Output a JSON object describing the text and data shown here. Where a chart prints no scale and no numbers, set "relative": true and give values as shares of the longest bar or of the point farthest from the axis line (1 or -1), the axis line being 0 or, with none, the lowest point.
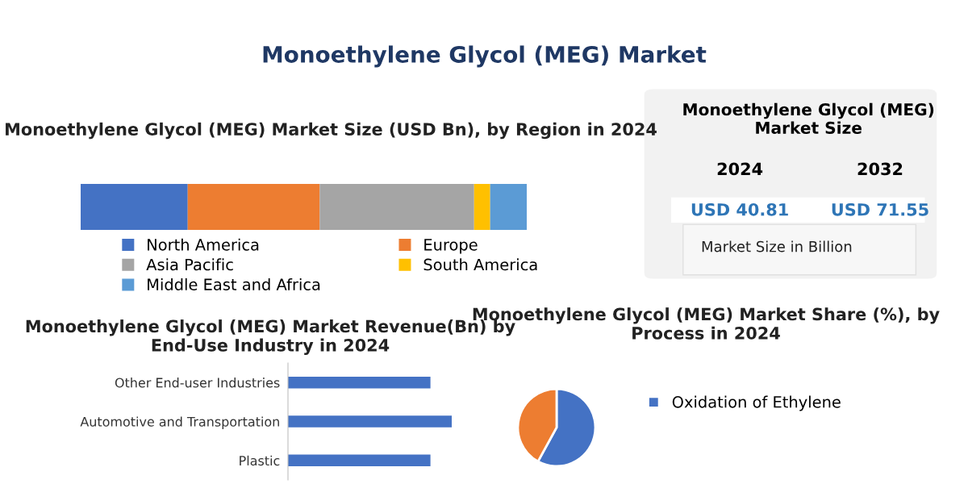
{
  "chart_data": [
    {
      "type": "other",
      "title": "Monoethylene Glycol (MEG) Market"
    },
    {
      "type": "bar",
      "title": "Monoethylene Glycol (MEG) Market Size (USD Bn), by Region in 2024",
      "orientation": "horizontal",
      "stacked": true,
      "relative": true,
      "tick_labels": false,
      "legend": "bottom",
      "categories": [
        null
      ],
      "series": [
        {
          "name": "North America",
          "color": "#4472c4",
          "values": [
            0.24
          ]
        },
        {
          "name": "Europe",
          "color": "#ed7d31",
          "values": [
            0.296
          ]
        },
        {
          "name": "Asia Pacific",
          "color": "#a5a5a5",
          "values": [
            0.346
          ]
        },
        {
          "name": "South America",
          "color": "#ffc000",
          "values": [
            0.036
          ]
        },
        {
          "name": "Middle East and Africa",
          "color": "#5b9bd5",
          "values": [
            0.082
          ]
        }
      ]
    },
    {
      "type": "other",
      "title": "Monoethylene Glycol (MEG) Market Size",
      "annotations": [
        "2024",
        "2032",
        "USD 40.81",
        "USD 71.55",
        "Market Size in Billion"
      ]
    },
    {
      "type": "bar",
      "title": "Monoethylene Glycol (MEG) Market Revenue(Bn) by End-Use Industry in 2024",
      "orientation": "horizontal",
      "relative": true,
      "tick_labels": "y",
      "categories": [
        "Other End-user Industries",
        "Automotive and Transportation",
        "Plastic"
      ],
      "values": [
        0.87,
        1,
        0.87
      ],
      "color": "#4472c4"
    },
    {
      "type": "pie",
      "title": "Monoethylene Glycol (MEG) Market Share (%), by Process in 2024",
      "legend": "right",
      "categories": [
        "Oxidation of Ethylene",
        null
      ],
      "values": [
        58,
        42
      ],
      "colors": [
        "#4472c4",
        "#ed7d31"
      ]
    }
  ]
}
